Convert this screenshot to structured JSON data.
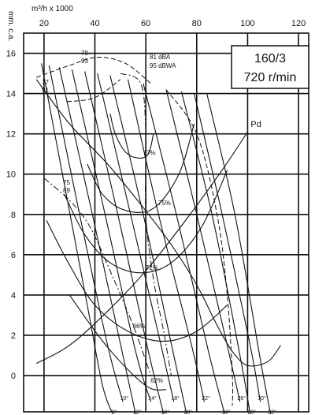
{
  "chart_data": {
    "type": "line",
    "title": "",
    "box_label_line1": "160/3",
    "box_label_line2": "720 r/min",
    "xlabel": "m³/h x 1000",
    "ylabel": "mm. c.a.",
    "xlim": [
      12,
      124
    ],
    "ylim": [
      -1.8,
      17
    ],
    "x_ticks": [
      20,
      40,
      60,
      80,
      100,
      120
    ],
    "y_ticks": [
      0,
      2,
      4,
      6,
      8,
      10,
      12,
      14,
      16
    ],
    "grid": true,
    "system_curve": {
      "name": "Pd",
      "points": [
        [
          17,
          0.6
        ],
        [
          30,
          1.5
        ],
        [
          45,
          3.2
        ],
        [
          60,
          5.2
        ],
        [
          75,
          7.6
        ],
        [
          90,
          10.2
        ],
        [
          100,
          12.1
        ]
      ]
    },
    "blade_angles": [
      {
        "name": "8°",
        "points": [
          [
            19,
            15.5
          ],
          [
            28,
            9.5
          ],
          [
            37,
            3.5
          ],
          [
            43,
            -0.5
          ],
          [
            47,
            -1.9
          ]
        ]
      },
      {
        "name": "10°",
        "points": [
          [
            22,
            15.4
          ],
          [
            34,
            8
          ],
          [
            45,
            1.5
          ],
          [
            51,
            -1.3
          ]
        ]
      },
      {
        "name": "12°",
        "points": [
          [
            26,
            15.3
          ],
          [
            39,
            8
          ],
          [
            51,
            1
          ],
          [
            56,
            -1.9
          ]
        ]
      },
      {
        "name": "14°",
        "points": [
          [
            31,
            15.2
          ],
          [
            44,
            8
          ],
          [
            56,
            1.2
          ],
          [
            62,
            -1.3
          ]
        ]
      },
      {
        "name": "16°",
        "points": [
          [
            36,
            15.1
          ],
          [
            49,
            8
          ],
          [
            61,
            1.2
          ],
          [
            67,
            -1.9
          ]
        ]
      },
      {
        "name": "18°",
        "points": [
          [
            41,
            15
          ],
          [
            54,
            8
          ],
          [
            66,
            1.5
          ],
          [
            71,
            -1.3
          ]
        ]
      },
      {
        "name": "20°",
        "points": [
          [
            46,
            14.9
          ],
          [
            59,
            8
          ],
          [
            71,
            1
          ],
          [
            76,
            -1.9
          ]
        ]
      },
      {
        "name": "22°",
        "points": [
          [
            53,
            14.7
          ],
          [
            65,
            8
          ],
          [
            78,
            1.5
          ],
          [
            83,
            -1.3
          ]
        ]
      },
      {
        "name": "24°",
        "points": [
          [
            59,
            14.5
          ],
          [
            72,
            8
          ],
          [
            85,
            1
          ],
          [
            91,
            -1.9
          ]
        ]
      },
      {
        "name": "26°",
        "points": [
          [
            68,
            14.2
          ],
          [
            80,
            8
          ],
          [
            92,
            1.5
          ],
          [
            97,
            -1.3
          ]
        ]
      },
      {
        "name": "28°",
        "points": [
          [
            74,
            14.1
          ],
          [
            86,
            8
          ],
          [
            97,
            1
          ],
          [
            101,
            -1.9
          ]
        ]
      },
      {
        "name": "30°",
        "points": [
          [
            79,
            14
          ],
          [
            90,
            8
          ],
          [
            101,
            1.5
          ],
          [
            105,
            -1.3
          ]
        ]
      },
      {
        "name": "32°",
        "points": [
          [
            84,
            14
          ],
          [
            95,
            8
          ],
          [
            105,
            0.8
          ],
          [
            109,
            -1.9
          ]
        ]
      }
    ],
    "efficiency_contours": [
      {
        "name": "77%",
        "points": [
          [
            46,
            13
          ],
          [
            48,
            12
          ],
          [
            52,
            11.1
          ],
          [
            57,
            10.8
          ],
          [
            61,
            11
          ],
          [
            63,
            12
          ]
        ]
      },
      {
        "name": "75%",
        "points": [
          [
            37,
            10.5
          ],
          [
            43,
            9
          ],
          [
            52,
            8.2
          ],
          [
            63,
            8.3
          ],
          [
            73,
            10
          ],
          [
            79,
            12.5
          ]
        ]
      },
      {
        "name": "71%",
        "points": [
          [
            28,
            9
          ],
          [
            36,
            7
          ],
          [
            46,
            5.6
          ],
          [
            58,
            5.1
          ],
          [
            70,
            5.6
          ],
          [
            82,
            7.4
          ],
          [
            92,
            10.2
          ]
        ]
      },
      {
        "name": "66%",
        "points": [
          [
            21,
            7.7
          ],
          [
            30,
            5.5
          ],
          [
            40,
            3.5
          ],
          [
            53,
            2.2
          ],
          [
            67,
            1.7
          ],
          [
            80,
            2.2
          ],
          [
            92,
            3.5
          ]
        ]
      },
      {
        "name": "62%",
        "points": [
          [
            30,
            4
          ],
          [
            45,
            1.4
          ],
          [
            60,
            -0.5
          ],
          [
            68,
            -0.7
          ]
        ]
      }
    ],
    "efficiency_outer_boundary": {
      "points": [
        [
          17,
          14.7
        ],
        [
          30,
          12.5
        ],
        [
          45,
          10.5
        ],
        [
          58,
          8.5
        ],
        [
          70,
          6.5
        ],
        [
          80,
          4.5
        ],
        [
          88,
          2.5
        ],
        [
          94,
          1.2
        ],
        [
          100,
          0.5
        ],
        [
          108,
          0.7
        ],
        [
          113,
          1.5
        ]
      ]
    },
    "noise_lines": [
      {
        "name": "79 93",
        "points": [
          [
            29,
            13.6
          ],
          [
            40,
            13.8
          ],
          [
            50,
            14.7
          ]
        ]
      },
      {
        "name": "81 dBA 95 dBWA",
        "points": [
          [
            50,
            15
          ],
          [
            58,
            14.5
          ],
          [
            60,
            12
          ],
          [
            60,
            8
          ],
          [
            63,
            4.8
          ],
          [
            67,
            2.2
          ],
          [
            70,
            0
          ]
        ]
      },
      {
        "name": "77 91",
        "points": [
          [
            17,
            14.8
          ],
          [
            30,
            15.4
          ],
          [
            41,
            15.8
          ],
          [
            52,
            15.5
          ],
          [
            62,
            14.5
          ]
        ]
      },
      {
        "name": "75 89",
        "points": [
          [
            20,
            9.8
          ],
          [
            30,
            8.7
          ],
          [
            38,
            7.4
          ],
          [
            46,
            5.2
          ],
          [
            55,
            2.5
          ],
          [
            62,
            0
          ]
        ]
      },
      {
        "name": "outer",
        "points": [
          [
            68,
            14.2
          ],
          [
            80,
            12
          ],
          [
            88,
            8
          ],
          [
            92,
            4
          ],
          [
            94,
            0
          ],
          [
            94,
            -1.5
          ]
        ]
      }
    ],
    "annotations": {
      "noise_81": "81 dBA",
      "noise_95": "95 dBWA",
      "noise_79": "79",
      "noise_93": "93",
      "noise_77": "77",
      "noise_91": "91",
      "noise_75": "75",
      "noise_89": "89"
    }
  }
}
